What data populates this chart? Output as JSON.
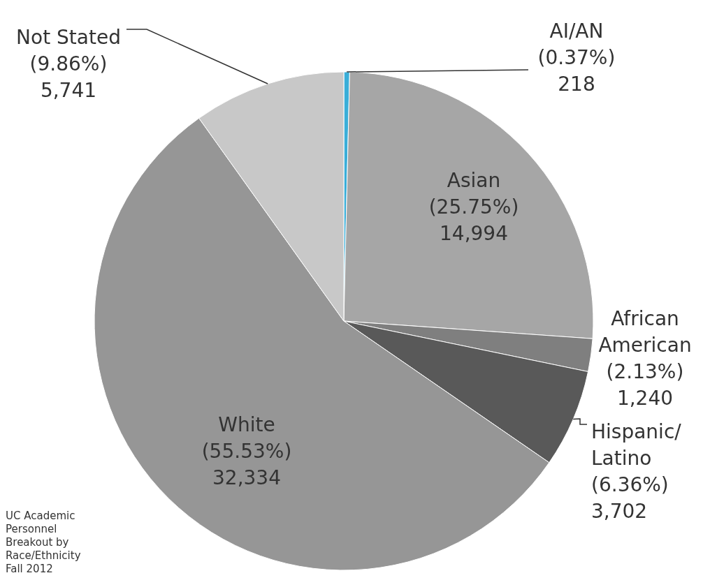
{
  "chart_data": {
    "type": "pie",
    "categories": [
      "AI/AN",
      "Asian",
      "African American",
      "Hispanic/Latino",
      "White",
      "Not Stated"
    ],
    "values": [
      218,
      14994,
      1240,
      3702,
      32334,
      5741
    ],
    "colors": [
      "#3aaed8",
      "#a6a6a6",
      "#7f7f7f",
      "#595959",
      "#969696",
      "#c8c8c8"
    ],
    "value_labels": [
      "(0.37%)\n218",
      "(25.75%)\n14,994",
      "(2.13%)\n1,240",
      "(6.36%)\n3,702",
      "(55.53%)\n32,334",
      "(9.86%)\n5,741"
    ],
    "annotations": [
      "UC Academic Personnel Breakout by Race/Ethnicity Fall 2012"
    ],
    "legend": false
  }
}
